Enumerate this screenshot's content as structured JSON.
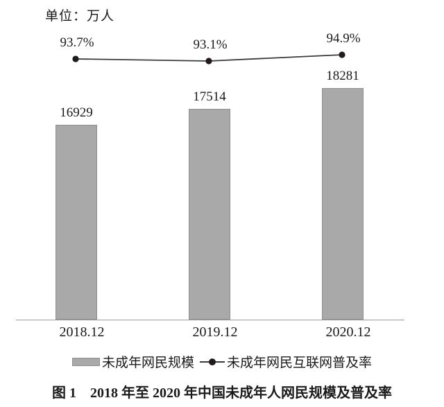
{
  "unit_label": "单位：万人",
  "caption": "图 1　2018 年至 2020 年中国未成年人网民规模及普及率",
  "legend": {
    "bar_label": "未成年网民规模",
    "line_label": "未成年网民互联网普及率"
  },
  "colors": {
    "bar_fill": "#a9a9a9",
    "bar_border": "#8f8f8f",
    "line": "#3a3a3a",
    "dot": "#201a1a",
    "axis": "#999999",
    "text": "#1a1a1a"
  },
  "chart_data": {
    "type": "bar",
    "subtype": "bar-line-combo",
    "title": "图 1　2018 年至 2020 年中国未成年人网民规模及普及率",
    "unit": "万人",
    "categories": [
      "2018.12",
      "2019.12",
      "2020.12"
    ],
    "series": [
      {
        "name": "未成年网民规模",
        "type": "bar",
        "unit": "万人",
        "values": [
          16929,
          17514,
          18281
        ]
      },
      {
        "name": "未成年网民互联网普及率",
        "type": "line",
        "unit": "%",
        "values": [
          93.7,
          93.1,
          94.9
        ]
      }
    ],
    "value_labels_shown": true,
    "axes_hidden": true,
    "grid": false,
    "legend_position": "bottom"
  }
}
